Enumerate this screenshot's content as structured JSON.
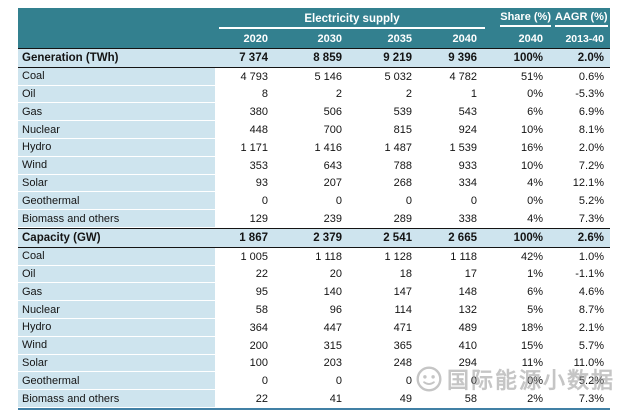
{
  "chart_data": {
    "type": "table",
    "header": {
      "group_main": "Electricity supply",
      "group_share": "Share (%)",
      "group_aagr": "AAGR (%)",
      "year_columns": [
        "2020",
        "2030",
        "2035",
        "2040"
      ],
      "share_column": "2040",
      "aagr_column": "2013-40"
    },
    "sections": [
      {
        "label": "Generation (TWh)",
        "values": [
          "7 374",
          "8 859",
          "9 219",
          "9 396"
        ],
        "share": "100%",
        "aagr": "2.0%",
        "rows": [
          {
            "label": "Coal",
            "values": [
              "4 793",
              "5 146",
              "5 032",
              "4 782"
            ],
            "share": "51%",
            "aagr": "0.6%"
          },
          {
            "label": "Oil",
            "values": [
              "8",
              "2",
              "2",
              "1"
            ],
            "share": "0%",
            "aagr": "-5.3%"
          },
          {
            "label": "Gas",
            "values": [
              "380",
              "506",
              "539",
              "543"
            ],
            "share": "6%",
            "aagr": "6.9%"
          },
          {
            "label": "Nuclear",
            "values": [
              "448",
              "700",
              "815",
              "924"
            ],
            "share": "10%",
            "aagr": "8.1%"
          },
          {
            "label": "Hydro",
            "values": [
              "1 171",
              "1 416",
              "1 487",
              "1 539"
            ],
            "share": "16%",
            "aagr": "2.0%"
          },
          {
            "label": "Wind",
            "values": [
              "353",
              "643",
              "788",
              "933"
            ],
            "share": "10%",
            "aagr": "7.2%"
          },
          {
            "label": "Solar",
            "values": [
              "93",
              "207",
              "268",
              "334"
            ],
            "share": "4%",
            "aagr": "12.1%"
          },
          {
            "label": "Geothermal",
            "values": [
              "0",
              "0",
              "0",
              "0"
            ],
            "share": "0%",
            "aagr": "5.2%"
          },
          {
            "label": "Biomass and others",
            "values": [
              "129",
              "239",
              "289",
              "338"
            ],
            "share": "4%",
            "aagr": "7.3%"
          }
        ]
      },
      {
        "label": "Capacity (GW)",
        "values": [
          "1 867",
          "2 379",
          "2 541",
          "2 665"
        ],
        "share": "100%",
        "aagr": "2.6%",
        "rows": [
          {
            "label": "Coal",
            "values": [
              "1 005",
              "1 118",
              "1 128",
              "1 118"
            ],
            "share": "42%",
            "aagr": "1.0%"
          },
          {
            "label": "Oil",
            "values": [
              "22",
              "20",
              "18",
              "17"
            ],
            "share": "1%",
            "aagr": "-1.1%"
          },
          {
            "label": "Gas",
            "values": [
              "95",
              "140",
              "147",
              "148"
            ],
            "share": "6%",
            "aagr": "4.6%"
          },
          {
            "label": "Nuclear",
            "values": [
              "58",
              "96",
              "114",
              "132"
            ],
            "share": "5%",
            "aagr": "8.7%"
          },
          {
            "label": "Hydro",
            "values": [
              "364",
              "447",
              "471",
              "489"
            ],
            "share": "18%",
            "aagr": "2.1%"
          },
          {
            "label": "Wind",
            "values": [
              "200",
              "315",
              "365",
              "410"
            ],
            "share": "15%",
            "aagr": "5.7%"
          },
          {
            "label": "Solar",
            "values": [
              "100",
              "203",
              "248",
              "294"
            ],
            "share": "11%",
            "aagr": "11.0%"
          },
          {
            "label": "Geothermal",
            "values": [
              "0",
              "0",
              "0",
              "0"
            ],
            "share": "0%",
            "aagr": "5.2%"
          },
          {
            "label": "Biomass and others",
            "values": [
              "22",
              "41",
              "49",
              "58"
            ],
            "share": "2%",
            "aagr": "7.3%"
          }
        ]
      }
    ]
  },
  "watermark": {
    "text": "国际能源小数据"
  },
  "colors": {
    "header_teal": "#33808F",
    "row_light_blue": "#CEE4EE",
    "section_border": "#141414",
    "bottom_line": "#4180A5",
    "watermark_gray": "#969696"
  }
}
